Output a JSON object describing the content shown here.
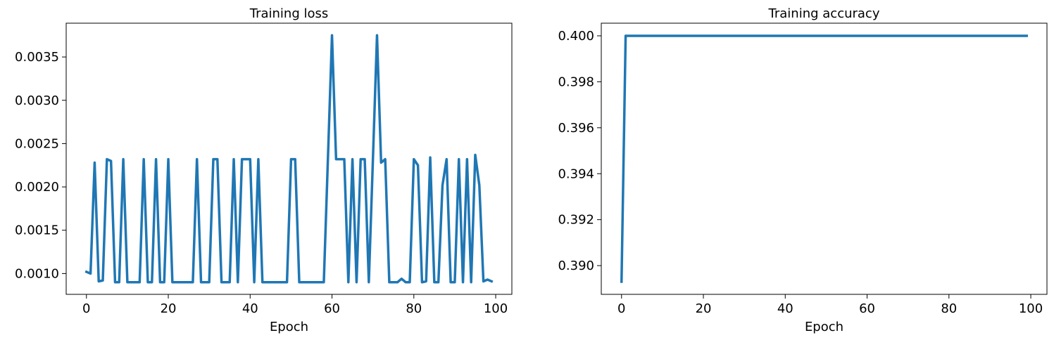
{
  "chart_data": [
    {
      "type": "line",
      "title": "Training loss",
      "xlabel": "Epoch",
      "ylabel": "",
      "xlim": [
        -4.95,
        103.95
      ],
      "ylim": [
        0.00076,
        0.00389
      ],
      "xticks": [
        0,
        20,
        40,
        60,
        80,
        100
      ],
      "xtick_labels": [
        "0",
        "20",
        "40",
        "60",
        "80",
        "100"
      ],
      "yticks": [
        0.001,
        0.0015,
        0.002,
        0.0025,
        0.003,
        0.0035
      ],
      "ytick_labels": [
        "0.0010",
        "0.0015",
        "0.0020",
        "0.0025",
        "0.0030",
        "0.0035"
      ],
      "grid": false,
      "color": "#1f77b4",
      "series": [
        {
          "x": [
            0,
            1,
            2,
            3,
            4,
            5,
            6,
            7,
            8,
            9,
            10,
            11,
            12,
            13,
            14,
            15,
            16,
            17,
            18,
            19,
            20,
            21,
            22,
            23,
            24,
            25,
            26,
            27,
            28,
            29,
            30,
            31,
            32,
            33,
            34,
            35,
            36,
            37,
            38,
            39,
            40,
            41,
            42,
            43,
            44,
            45,
            46,
            47,
            48,
            49,
            50,
            51,
            52,
            53,
            54,
            55,
            56,
            57,
            58,
            59,
            60,
            61,
            62,
            63,
            64,
            65,
            66,
            67,
            68,
            69,
            70,
            71,
            72,
            73,
            74,
            75,
            76,
            77,
            78,
            79,
            80,
            81,
            82,
            83,
            84,
            85,
            86,
            87,
            88,
            89,
            90,
            91,
            92,
            93,
            94,
            95,
            96,
            97,
            98,
            99
          ],
          "y": [
            0.00102,
            0.001,
            0.00228,
            0.00091,
            0.00092,
            0.00232,
            0.0023,
            0.0009,
            0.0009,
            0.00232,
            0.0009,
            0.0009,
            0.0009,
            0.0009,
            0.00232,
            0.0009,
            0.0009,
            0.00232,
            0.0009,
            0.0009,
            0.00232,
            0.0009,
            0.0009,
            0.0009,
            0.0009,
            0.0009,
            0.0009,
            0.00232,
            0.0009,
            0.0009,
            0.0009,
            0.00232,
            0.00232,
            0.0009,
            0.0009,
            0.0009,
            0.00232,
            0.0009,
            0.00232,
            0.00232,
            0.00232,
            0.0009,
            0.00232,
            0.0009,
            0.0009,
            0.0009,
            0.0009,
            0.0009,
            0.0009,
            0.0009,
            0.00232,
            0.00232,
            0.0009,
            0.0009,
            0.0009,
            0.0009,
            0.0009,
            0.0009,
            0.0009,
            0.00232,
            0.00375,
            0.00232,
            0.00232,
            0.00232,
            0.0009,
            0.00232,
            0.0009,
            0.00232,
            0.00232,
            0.0009,
            0.00232,
            0.00375,
            0.00228,
            0.00232,
            0.0009,
            0.0009,
            0.0009,
            0.00094,
            0.0009,
            0.0009,
            0.00232,
            0.00225,
            0.0009,
            0.00091,
            0.00234,
            0.0009,
            0.0009,
            0.00202,
            0.00232,
            0.0009,
            0.0009,
            0.00232,
            0.0009,
            0.00232,
            0.0009,
            0.00237,
            0.00202,
            0.00091,
            0.00093,
            0.00091
          ]
        }
      ]
    },
    {
      "type": "line",
      "title": "Training accuracy",
      "xlabel": "Epoch",
      "ylabel": "",
      "xlim": [
        -4.95,
        103.95
      ],
      "ylim": [
        0.38875,
        0.40055
      ],
      "xticks": [
        0,
        20,
        40,
        60,
        80,
        100
      ],
      "xtick_labels": [
        "0",
        "20",
        "40",
        "60",
        "80",
        "100"
      ],
      "yticks": [
        0.39,
        0.392,
        0.394,
        0.396,
        0.398,
        0.4
      ],
      "ytick_labels": [
        "0.390",
        "0.392",
        "0.394",
        "0.396",
        "0.398",
        "0.400"
      ],
      "grid": false,
      "color": "#1f77b4",
      "series": [
        {
          "x": [
            0,
            1,
            99
          ],
          "y": [
            0.3893,
            0.4,
            0.4
          ]
        }
      ]
    }
  ]
}
